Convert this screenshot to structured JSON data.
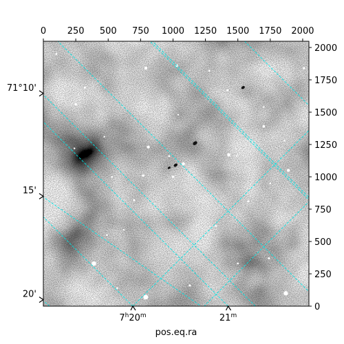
{
  "chart_data": {
    "type": "heatmap",
    "title": "",
    "xlabel": "pos.eq.ra",
    "ylabel": "",
    "colormap": "gray_r",
    "pixel_axes": {
      "xlim": [
        0,
        2048
      ],
      "ylim": [
        0,
        2048
      ],
      "x_ticks": [
        "0",
        "250",
        "500",
        "750",
        "1000",
        "1250",
        "1500",
        "1750",
        "2000"
      ],
      "y_ticks": [
        "0",
        "250",
        "500",
        "750",
        "1000",
        "1250",
        "1500",
        "1750",
        "2000"
      ]
    },
    "world_axes": {
      "ra_ticks": [
        {
          "x": 690,
          "label_main": "7",
          "sup1": "h",
          "label_rest": "20",
          "sup2": "m"
        },
        {
          "x": 1425,
          "label_main": "21",
          "sup1": "m",
          "label_rest": "",
          "sup2": ""
        }
      ],
      "dec_ticks": [
        {
          "y": 1645,
          "label": "71°10'"
        },
        {
          "y": 850,
          "label": "15'"
        },
        {
          "y": 50,
          "label": "20'"
        }
      ]
    },
    "grid": {
      "color": "#00e5e5",
      "style": "dashed",
      "ra_lines": [
        [
          [
            690,
            0
          ],
          [
            -10,
            700
          ]
        ],
        [
          [
            1425,
            0
          ],
          [
            -10,
            1435
          ]
        ],
        [
          [
            2060,
            100
          ],
          [
            -10,
            2170
          ]
        ],
        [
          [
            2060,
            810
          ],
          [
            710,
            2160
          ]
        ],
        [
          [
            2060,
            1540
          ],
          [
            1440,
            2160
          ]
        ]
      ],
      "dec_lines": [
        [
          [
            690,
            0
          ],
          [
            2060,
            1370
          ]
        ],
        [
          [
            -10,
            850
          ],
          [
            1230,
            -10
          ],
          [
            2060,
            820
          ]
        ],
        [
          [
            -10,
            50
          ],
          [
            60,
            -10
          ]
        ],
        [
          [
            -10,
            1645
          ],
          [
            2060,
            -425
          ]
        ],
        [
          [
            -10,
            2080
          ],
          [
            40,
            2160
          ]
        ],
        [
          [
            730,
            2160
          ],
          [
            2060,
            830
          ]
        ]
      ]
    },
    "bright_stars": [
      [
        790,
        70,
        3.5
      ],
      [
        1870,
        100,
        3.2
      ],
      [
        390,
        330,
        3.2
      ],
      [
        1080,
        1100,
        2.2
      ],
      [
        1430,
        1170,
        2.4
      ],
      [
        810,
        1230,
        2.1
      ],
      [
        1700,
        1390,
        1.9
      ],
      [
        1890,
        1050,
        2.2
      ],
      [
        770,
        1010,
        1.8
      ],
      [
        1580,
        810,
        1.5
      ],
      [
        1000,
        1000,
        1.6
      ],
      [
        250,
        1560,
        1.7
      ],
      [
        1030,
        1860,
        1.8
      ],
      [
        790,
        1840,
        2.2
      ],
      [
        320,
        1690,
        1.6
      ],
      [
        530,
        1000,
        1.4
      ],
      [
        700,
        820,
        1.5
      ],
      [
        1330,
        620,
        1.4
      ],
      [
        1130,
        160,
        1.6
      ],
      [
        570,
        140,
        1.3
      ],
      [
        1420,
        1670,
        1.5
      ],
      [
        1750,
        950,
        1.3
      ],
      [
        1740,
        370,
        1.5
      ],
      [
        490,
        550,
        1.3
      ],
      [
        1500,
        330,
        1.3
      ],
      [
        1280,
        1820,
        1.3
      ],
      [
        620,
        590,
        1.2
      ],
      [
        1040,
        1480,
        1.2
      ],
      [
        1860,
        1280,
        1.2
      ],
      [
        470,
        1310,
        1.2
      ],
      [
        240,
        1220,
        1.2
      ],
      [
        100,
        1950,
        1.3
      ],
      [
        2010,
        1840,
        1.6
      ],
      [
        1490,
        1160,
        1.1
      ],
      [
        1700,
        1540,
        1.1
      ],
      [
        970,
        1160,
        1.4
      ]
    ],
    "dark_spots": [
      [
        1170,
        1260,
        3.5
      ],
      [
        1020,
        1090,
        3.0
      ],
      [
        970,
        1070,
        2.2
      ],
      [
        1540,
        1690,
        2.8
      ]
    ]
  }
}
